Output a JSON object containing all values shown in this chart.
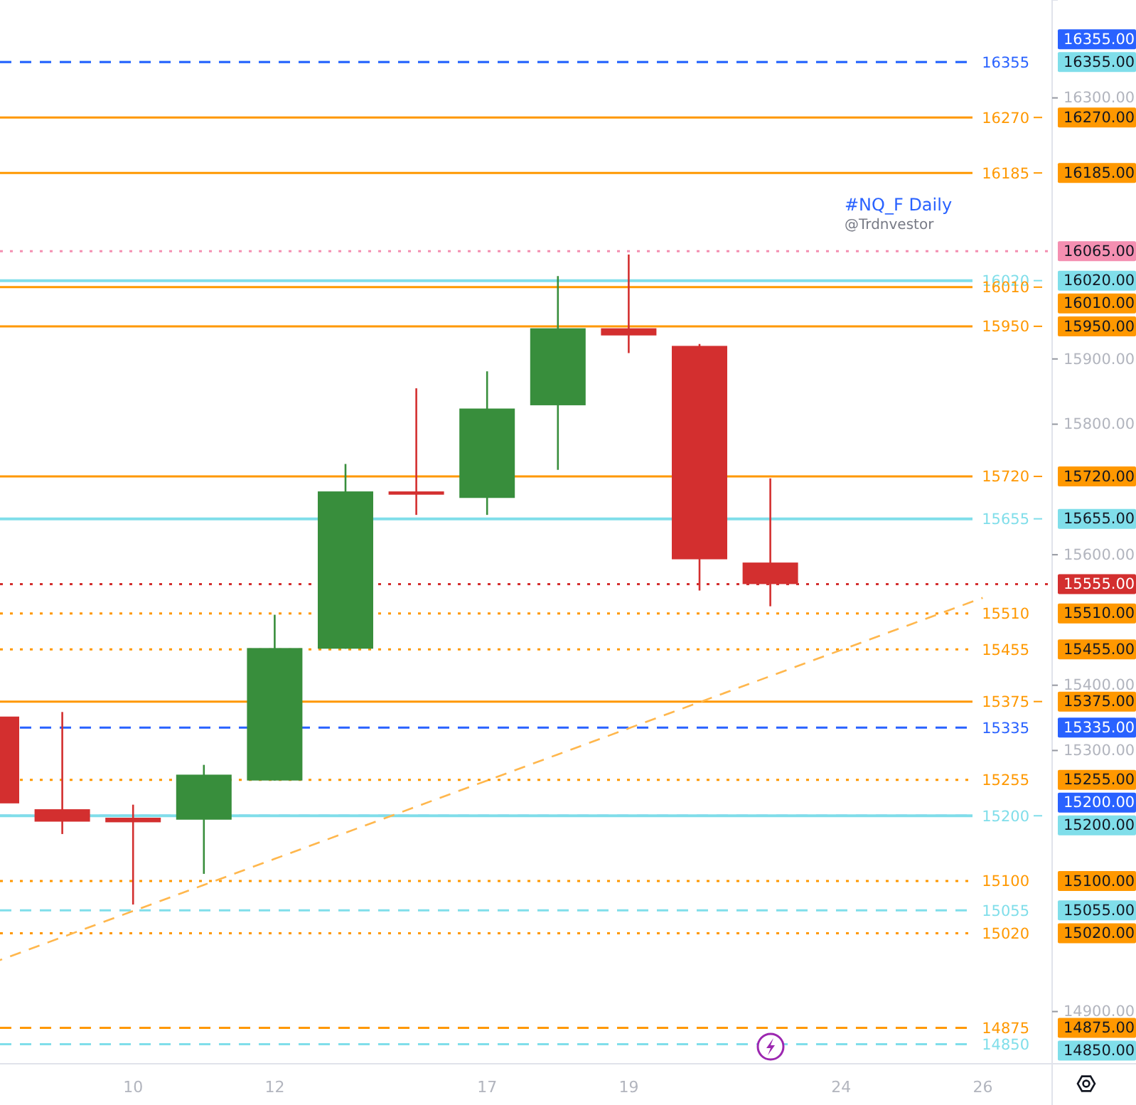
{
  "chart_data": {
    "type": "candlestick",
    "title": "#NQ_F Daily",
    "subtitle": "@Trdnvestor",
    "categories": [
      null,
      null,
      "10",
      null,
      "12",
      null,
      null,
      "17",
      null,
      "19",
      null,
      null,
      "24",
      null,
      "26"
    ],
    "ohlc": [
      [
        15352,
        15352,
        15219,
        15219
      ],
      [
        15210,
        15359,
        15172,
        15191
      ],
      [
        15197,
        15217,
        15064,
        15190
      ],
      [
        15194,
        15278,
        15111,
        15263
      ],
      [
        15254,
        15508,
        15254,
        15457
      ],
      [
        15456,
        15739,
        15456,
        15697
      ],
      [
        15697,
        15855,
        15661,
        15692
      ],
      [
        15687,
        15881,
        15661,
        15824
      ],
      [
        15829,
        16027,
        15730,
        15947
      ],
      [
        15947,
        16060,
        15909,
        15936
      ],
      [
        15920,
        15923,
        15545,
        15593
      ],
      [
        15588,
        15717,
        15521,
        15555
      ],
      null,
      null,
      null
    ],
    "colors": [
      "#d32f2f",
      "#d32f2f",
      "#d32f2f",
      "#388e3c",
      "#388e3c",
      "#388e3c",
      "#d32f2f",
      "#388e3c",
      "#388e3c",
      "#d32f2f",
      "#d32f2f",
      "#d32f2f",
      null,
      null,
      null
    ],
    "series": [
      {
        "type": "line",
        "color": "#ffb74d",
        "line_style": "dashed",
        "values": [
          14974,
          15014,
          15054,
          15094,
          15134,
          15174,
          15214,
          15254,
          15294,
          15334,
          15374,
          15414,
          15454,
          15494,
          15534
        ]
      }
    ],
    "ylim": [
      14820,
      16450
    ],
    "yticks": [
      {
        "value": 14900,
        "label": "14900.00"
      },
      {
        "value": 15300,
        "label": "15300.00"
      },
      {
        "value": 15400,
        "label": "15400.00"
      },
      {
        "value": 15600,
        "label": "15600.00"
      },
      {
        "value": 15800,
        "label": "15800.00"
      },
      {
        "value": 15900,
        "label": "15900.00"
      },
      {
        "value": 16300,
        "label": "16300.00"
      }
    ],
    "annotations": [
      "16355.00",
      "16355.00",
      "16270.00",
      "16185.00",
      "16065.00",
      "16020.00",
      "16010.00",
      "15950.00",
      "15720.00",
      "15655.00",
      "15555.00",
      "15510.00",
      "15455.00",
      "15375.00",
      "15335.00",
      "15255.00",
      "15200.00",
      "15200.00",
      "15100.00",
      "15055.00",
      "15020.00",
      "14875.00",
      "14850.00"
    ],
    "ref_lines": [
      {
        "axis": "y",
        "value": 16355,
        "label": "16355",
        "color": "#2962ff",
        "line_style": "dashed"
      },
      {
        "axis": "y",
        "value": 16355,
        "color": "#80deea",
        "line_style": "dashed"
      },
      {
        "axis": "y",
        "value": 16270,
        "label": "16270",
        "color": "#ff9800",
        "line_style": "solid"
      },
      {
        "axis": "y",
        "value": 16185,
        "label": "16185",
        "color": "#ff9800",
        "line_style": "solid"
      },
      {
        "axis": "y",
        "value": 16065,
        "color": "#f48fb1",
        "line_style": "dotted"
      },
      {
        "axis": "y",
        "value": 16020,
        "label": "16020",
        "color": "#80deea",
        "line_style": "solid"
      },
      {
        "axis": "y",
        "value": 16010,
        "label": "16010",
        "color": "#ff9800",
        "line_style": "solid"
      },
      {
        "axis": "y",
        "value": 15950,
        "label": "15950",
        "color": "#ff9800",
        "line_style": "solid"
      },
      {
        "axis": "y",
        "value": 15720,
        "label": "15720",
        "color": "#ff9800",
        "line_style": "solid"
      },
      {
        "axis": "y",
        "value": 15655,
        "label": "15655",
        "color": "#80deea",
        "line_style": "solid"
      },
      {
        "axis": "y",
        "value": 15555,
        "color": "#d32f2f",
        "line_style": "dotted"
      },
      {
        "axis": "y",
        "value": 15510,
        "label": "15510",
        "color": "#ff9800",
        "line_style": "dotted"
      },
      {
        "axis": "y",
        "value": 15455,
        "label": "15455",
        "color": "#ff9800",
        "line_style": "dotted"
      },
      {
        "axis": "y",
        "value": 15375,
        "label": "15375",
        "color": "#ff9800",
        "line_style": "solid"
      },
      {
        "axis": "y",
        "value": 15335,
        "label": "15335",
        "color": "#2962ff",
        "line_style": "dashed"
      },
      {
        "axis": "y",
        "value": 15255,
        "label": "15255",
        "color": "#ff9800",
        "line_style": "dotted"
      },
      {
        "axis": "y",
        "value": 15200,
        "color": "#2962ff",
        "line_style": "dashed"
      },
      {
        "axis": "y",
        "value": 15200,
        "label": "15200",
        "color": "#80deea",
        "line_style": "solid"
      },
      {
        "axis": "y",
        "value": 15100,
        "label": "15100",
        "color": "#ff9800",
        "line_style": "dotted"
      },
      {
        "axis": "y",
        "value": 15055,
        "label": "15055",
        "color": "#80deea",
        "line_style": "dashed"
      },
      {
        "axis": "y",
        "value": 15020,
        "label": "15020",
        "color": "#ff9800",
        "line_style": "dotted"
      },
      {
        "axis": "y",
        "value": 14875,
        "label": "14875",
        "color": "#ff9800",
        "line_style": "dashed"
      },
      {
        "axis": "y",
        "value": 14850,
        "label": "14850",
        "color": "#80deea",
        "line_style": "dashed"
      }
    ]
  }
}
